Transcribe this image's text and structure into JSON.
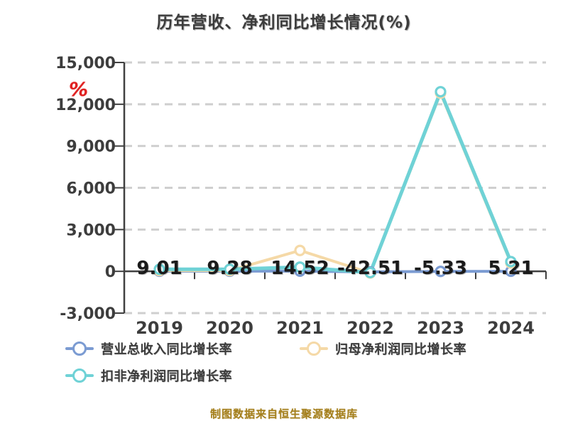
{
  "title": "历年营收、净利同比增长情况(%)",
  "footer": "制图数据来自恒生聚源数据库",
  "colors": {
    "background": "#ffffff",
    "title_text": "#3c3c3c",
    "axis_line": "#404040",
    "tick_text": "#3d3d3d",
    "gridline": "#cfcfcf",
    "data_label_text": "#1a1a1a",
    "unit_label_red": "#e02222",
    "footer_gold": "#a5801e",
    "marker_fill": "#ffffff",
    "series_revenue_blue": "#7b9bd2",
    "series_parent_profit_yellow": "#f5d9a7",
    "series_deducted_profit_teal": "#6fd2d6"
  },
  "chart_data": {
    "type": "line",
    "title": "历年营收、净利同比增长情况(%)",
    "xlabel": "",
    "ylabel": "%",
    "unit": "%",
    "categories": [
      "2019",
      "2020",
      "2021",
      "2022",
      "2023",
      "2024"
    ],
    "y_axis": {
      "min": -3000,
      "max": 15000,
      "tick_interval": 3000,
      "tick_values": [
        15000,
        12000,
        9000,
        6000,
        3000,
        0,
        -3000
      ],
      "tick_labels": [
        "15,000",
        "12,000",
        "9,000",
        "6,000",
        "3,000",
        "0",
        "-3,000"
      ]
    },
    "grid": "horizontal dashed",
    "legend_position": "bottom",
    "series": [
      {
        "name": "营业总收入同比增长率",
        "color": "#7b9bd2",
        "values": [
          9.01,
          9.28,
          14.52,
          -42.51,
          -5.33,
          5.21
        ],
        "point_labels": [
          "9.01",
          "9.28",
          "14.52",
          "-42.51",
          "-5.33",
          "5.21"
        ],
        "labels_visible": true
      },
      {
        "name": "归母净利润同比增长率",
        "color": "#f5d9a7",
        "values": [
          50,
          50,
          1500,
          -120,
          12800,
          600
        ],
        "labels_visible": false
      },
      {
        "name": "扣非净利润同比增长率",
        "color": "#6fd2d6",
        "values": [
          150,
          150,
          300,
          -90,
          12900,
          700
        ],
        "labels_visible": false
      }
    ],
    "legend_rows": [
      [
        0,
        1
      ],
      [
        2
      ]
    ]
  }
}
